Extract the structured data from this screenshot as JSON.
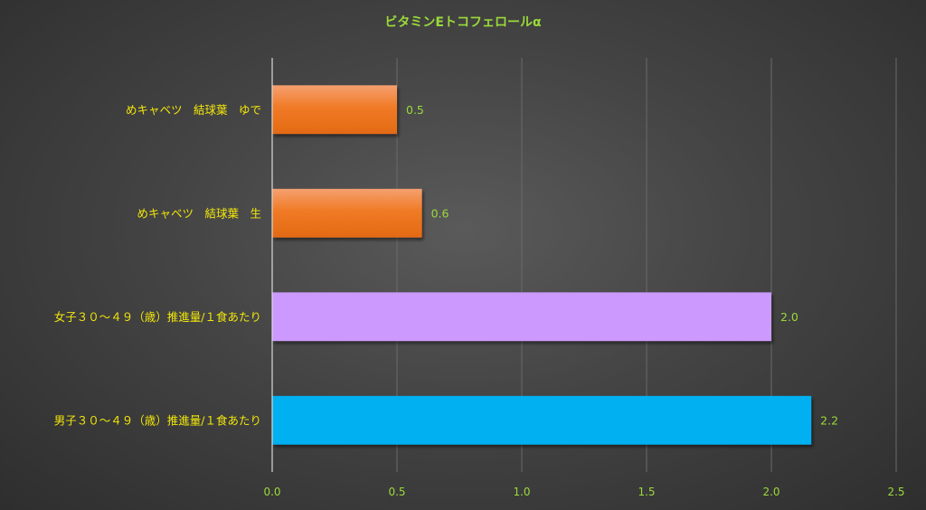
{
  "chart_data": {
    "type": "bar",
    "orientation": "horizontal",
    "title": "ビタミンEトコフェロールα",
    "categories": [
      "めキャベツ　結球葉　ゆで",
      "めキャベツ　結球葉　生",
      "女子３０～４９（歳）推進量/１食あたり",
      "男子３０～４９（歳）推進量/１食あたり"
    ],
    "values": [
      0.5,
      0.6,
      2.0,
      2.16
    ],
    "data_labels": [
      "0.5",
      "0.6",
      "2.0",
      "2.2"
    ],
    "colors": [
      "#f07a26",
      "#f07a26",
      "#cc99ff",
      "#00b0f0"
    ],
    "xlim": [
      0,
      2.5
    ],
    "xticks": [
      "0.0",
      "0.5",
      "1.0",
      "1.5",
      "2.0",
      "2.5"
    ],
    "xlabel": "",
    "ylabel": "",
    "grid": true,
    "legend": "none",
    "title_color": "#9bd93a",
    "category_label_color": "#f2e60a",
    "value_label_color": "#9bd93a",
    "gridline_color": "#6a6a6a"
  }
}
